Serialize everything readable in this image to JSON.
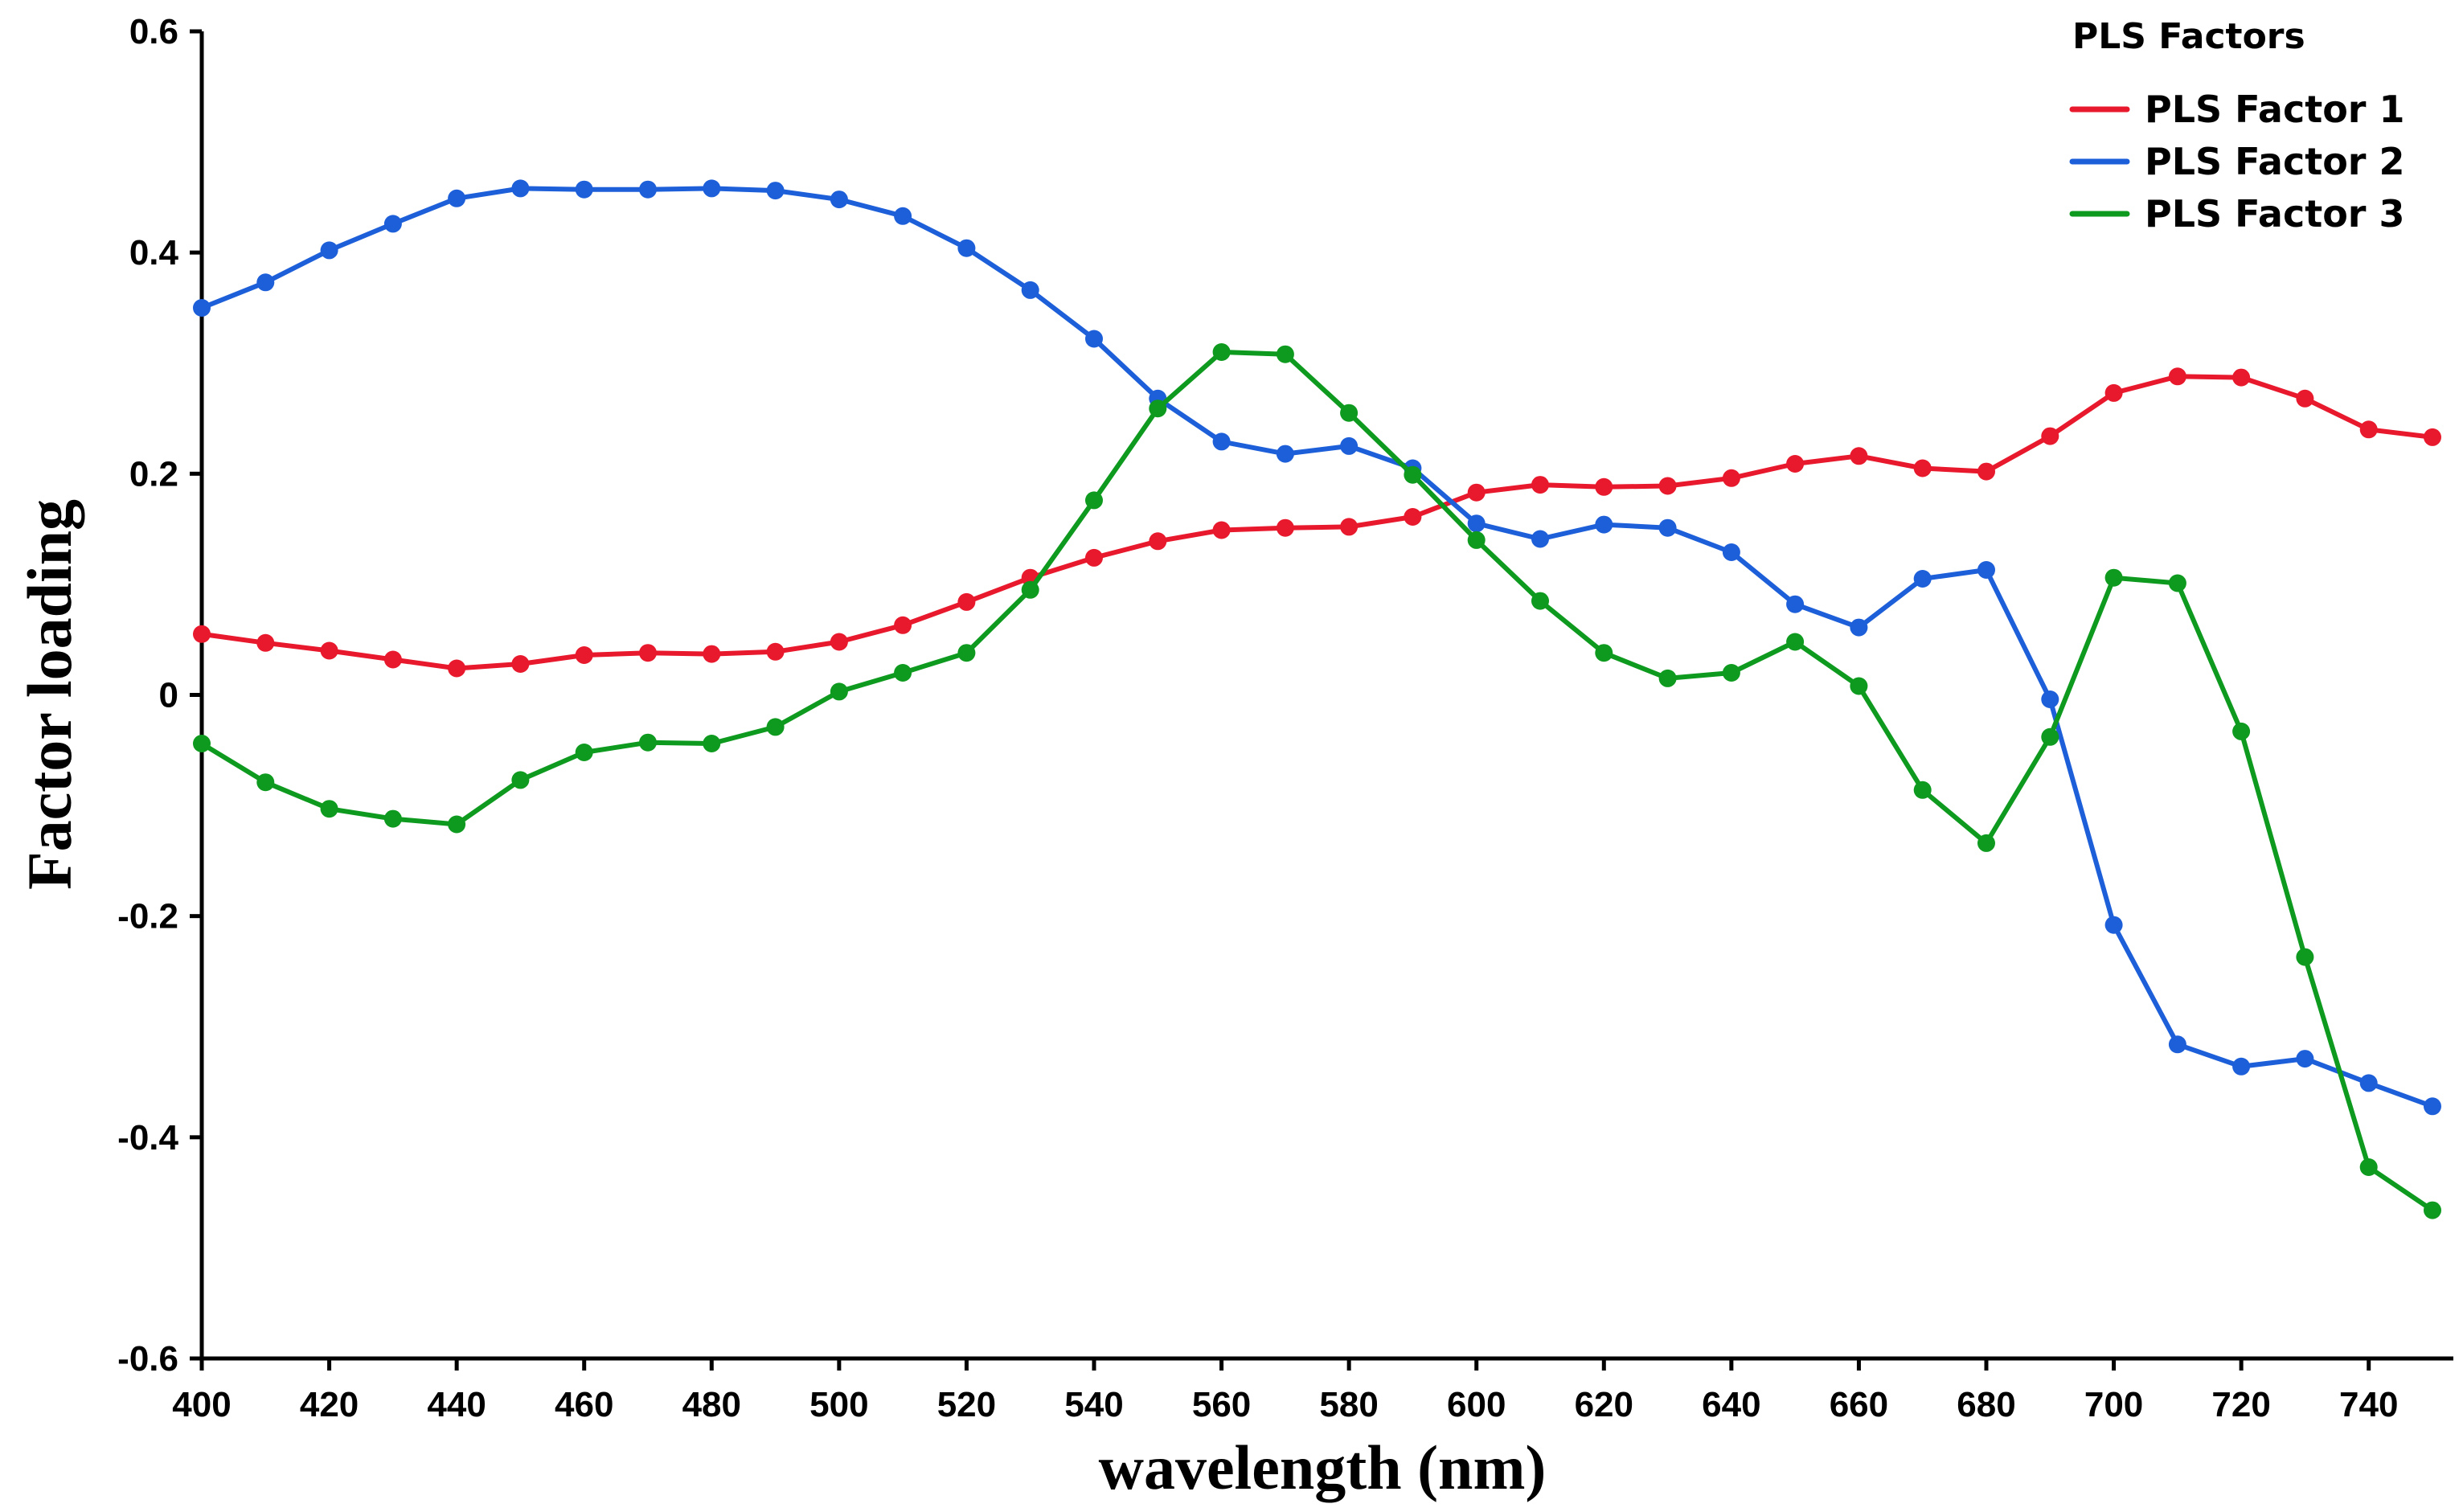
{
  "chart_data": {
    "type": "line",
    "title": "",
    "xlabel": "wavelength (nm)",
    "ylabel": "Factor loading",
    "xlim": [
      400,
      750
    ],
    "ylim": [
      -0.6,
      0.6
    ],
    "x_ticks": [
      400,
      420,
      440,
      460,
      480,
      500,
      520,
      540,
      560,
      580,
      600,
      620,
      640,
      660,
      680,
      700,
      720,
      740
    ],
    "y_ticks": [
      -0.6,
      -0.4,
      -0.2,
      0,
      0.2,
      0.4,
      0.6
    ],
    "y_tick_labels": [
      "-0.6",
      "-0.4",
      "-0.2",
      "0",
      "0.2",
      "0.4",
      "0.6"
    ],
    "grid": false,
    "legend": {
      "title": "PLS Factors",
      "position": "top-right"
    },
    "x": [
      400,
      410,
      420,
      430,
      440,
      450,
      460,
      470,
      480,
      490,
      500,
      510,
      520,
      530,
      540,
      550,
      560,
      570,
      580,
      590,
      600,
      610,
      620,
      630,
      640,
      650,
      660,
      670,
      680,
      690,
      700,
      710,
      720,
      730,
      740,
      750
    ],
    "series": [
      {
        "name": "PLS Factor 1",
        "color": "#e8192c",
        "values": [
          0.055,
          0.047,
          0.04,
          0.032,
          0.024,
          0.028,
          0.036,
          0.038,
          0.037,
          0.039,
          0.048,
          0.063,
          0.084,
          0.106,
          0.124,
          0.139,
          0.149,
          0.151,
          0.152,
          0.161,
          0.183,
          0.19,
          0.188,
          0.189,
          0.196,
          0.209,
          0.216,
          0.205,
          0.202,
          0.234,
          0.273,
          0.288,
          0.287,
          0.268,
          0.24,
          0.233
        ]
      },
      {
        "name": "PLS Factor 2",
        "color": "#1d5fd9",
        "values": [
          0.35,
          0.373,
          0.402,
          0.426,
          0.449,
          0.458,
          0.457,
          0.457,
          0.458,
          0.456,
          0.448,
          0.433,
          0.404,
          0.366,
          0.322,
          0.268,
          0.229,
          0.218,
          0.225,
          0.205,
          0.155,
          0.141,
          0.154,
          0.151,
          0.129,
          0.082,
          0.061,
          0.105,
          0.113,
          -0.004,
          -0.208,
          -0.316,
          -0.336,
          -0.329,
          -0.351,
          -0.372
        ]
      },
      {
        "name": "PLS Factor 3",
        "color": "#0e9a1f",
        "values": [
          -0.044,
          -0.079,
          -0.103,
          -0.112,
          -0.117,
          -0.077,
          -0.052,
          -0.043,
          -0.044,
          -0.029,
          0.003,
          0.02,
          0.038,
          0.095,
          0.176,
          0.259,
          0.31,
          0.308,
          0.255,
          0.199,
          0.14,
          0.085,
          0.038,
          0.015,
          0.02,
          0.048,
          0.008,
          -0.086,
          -0.134,
          -0.038,
          0.106,
          0.101,
          -0.033,
          -0.237,
          -0.427,
          -0.466
        ]
      }
    ]
  }
}
